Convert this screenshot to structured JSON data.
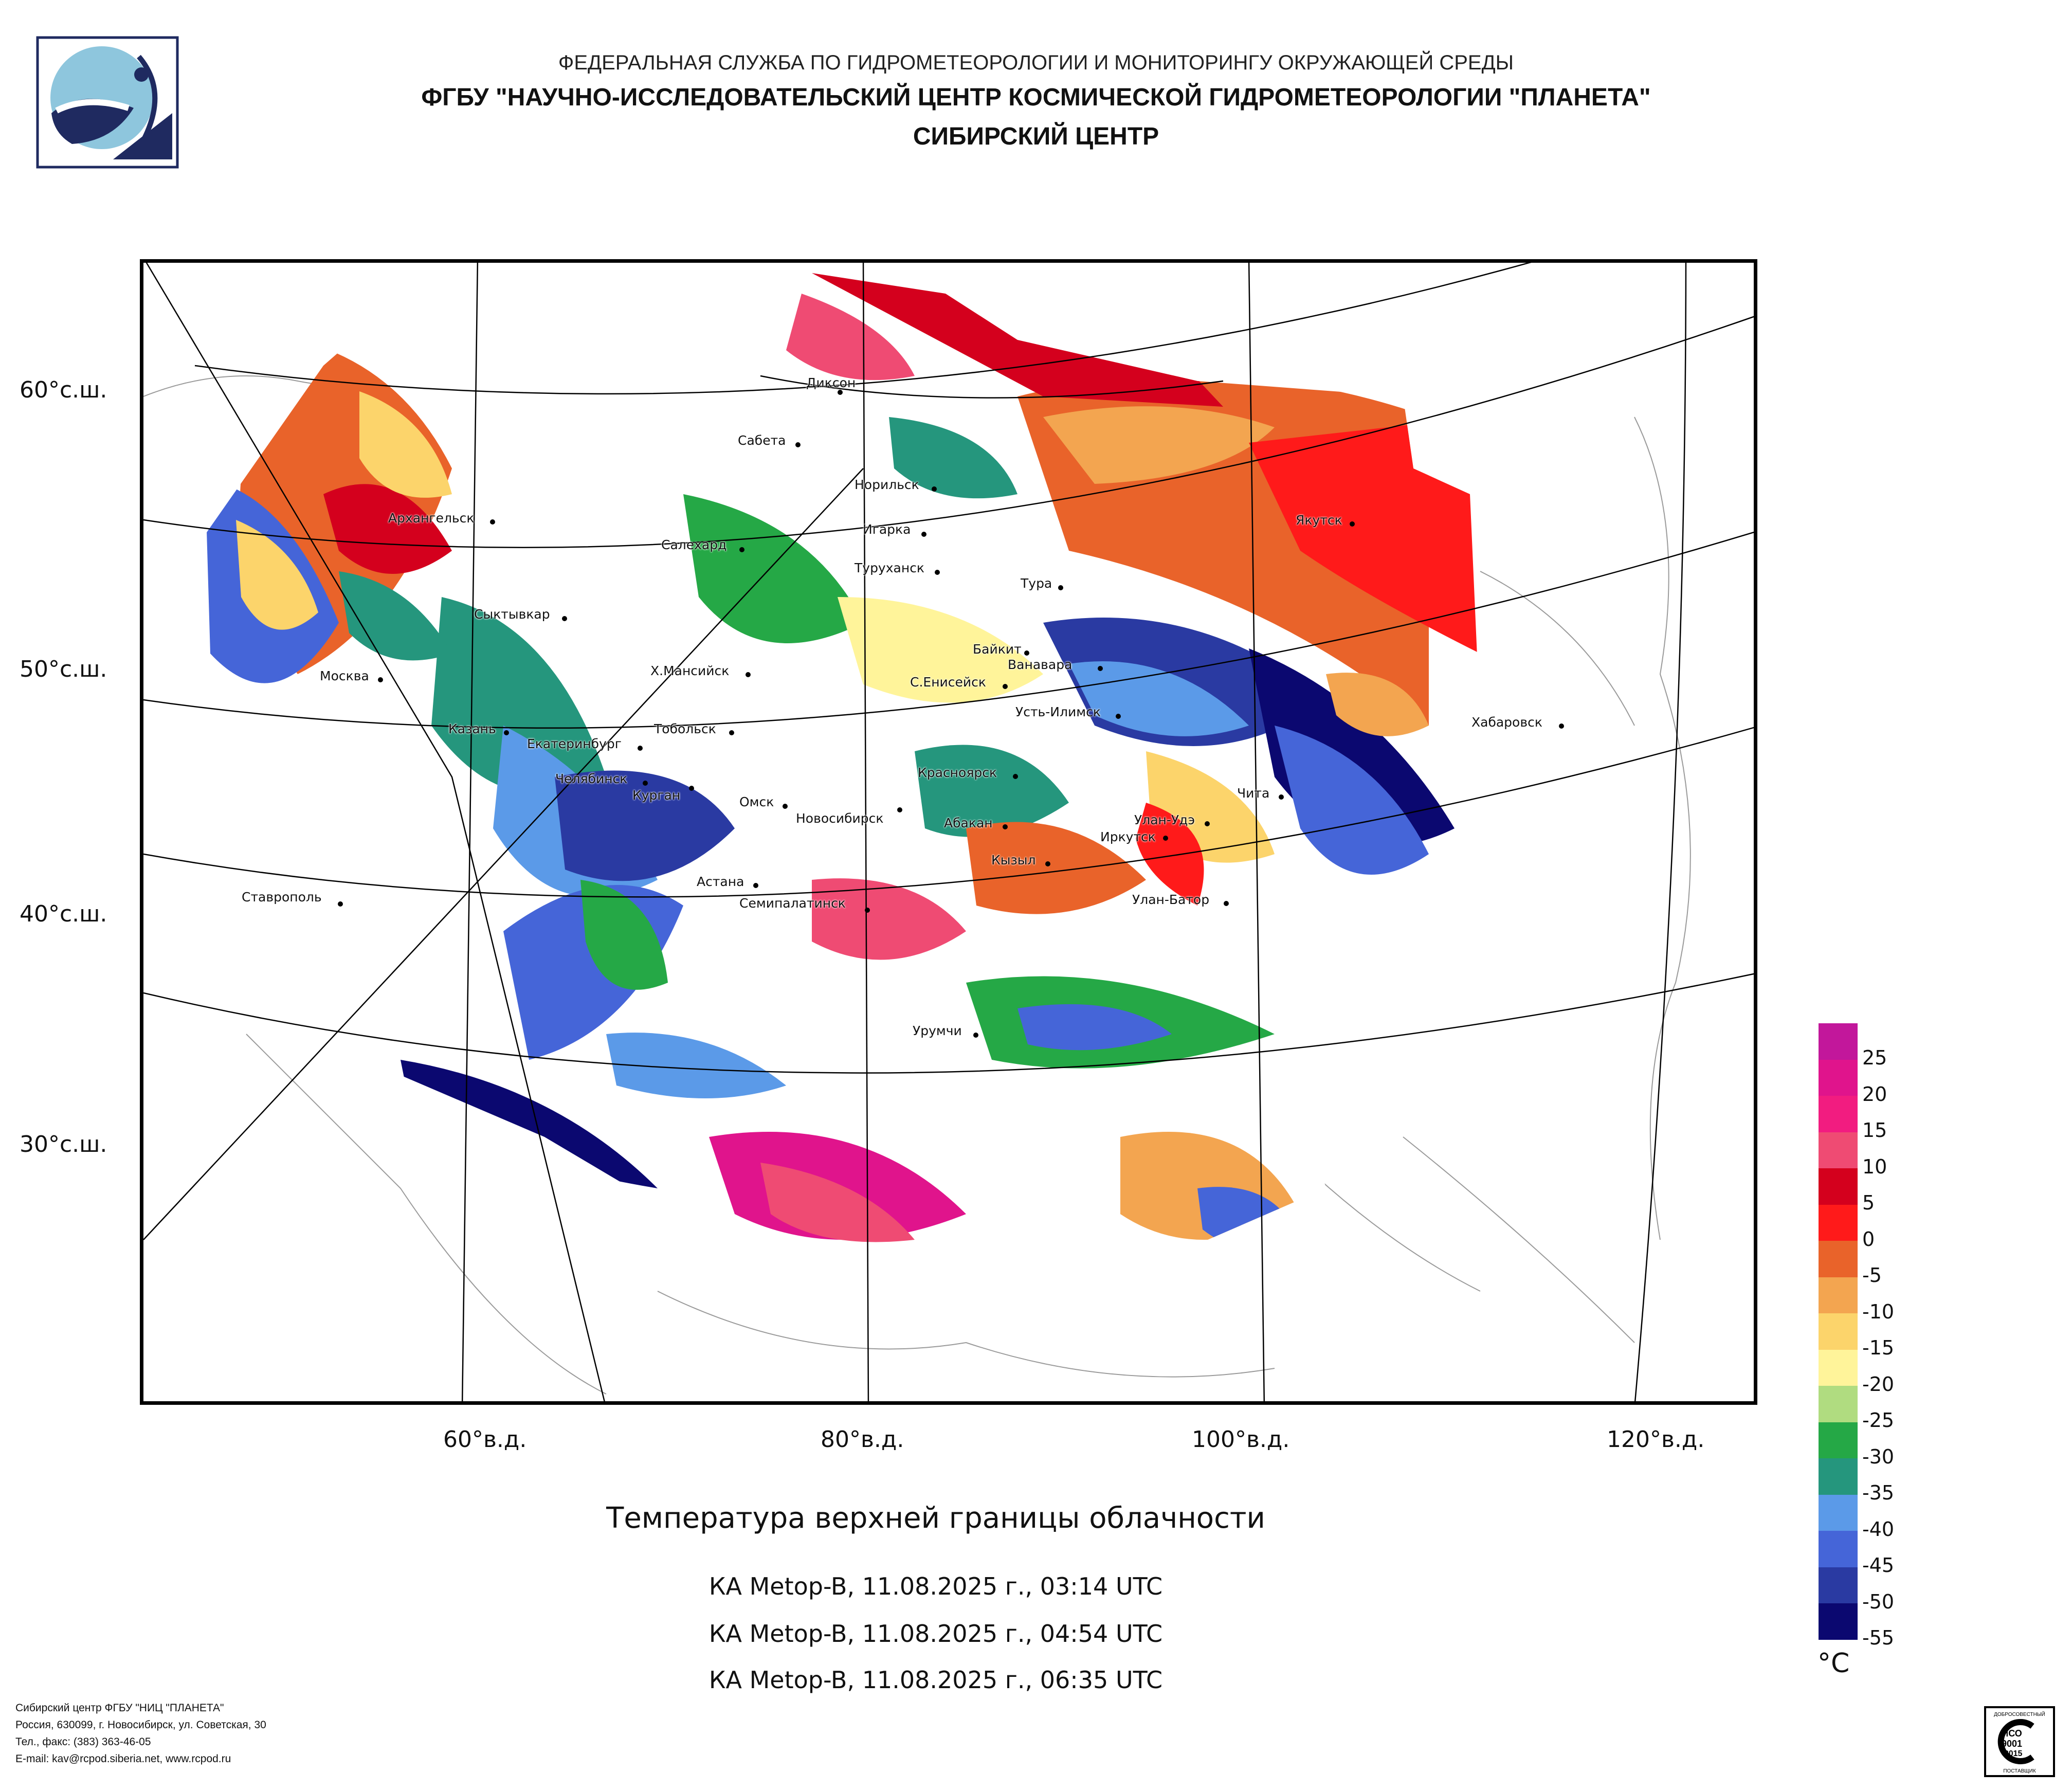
{
  "header": {
    "line1": "ФЕДЕРАЛЬНАЯ СЛУЖБА ПО ГИДРОМЕТЕОРОЛОГИИ И МОНИТОРИНГУ ОКРУЖАЮЩЕЙ СРЕДЫ",
    "line2": "ФГБУ \"НАУЧНО-ИССЛЕДОВАТЕЛЬСКИЙ ЦЕНТР КОСМИЧЕСКОЙ ГИДРОМЕТЕОРОЛОГИИ \"ПЛАНЕТА\"",
    "line3": "СИБИРСКИЙ ЦЕНТР"
  },
  "map": {
    "lat_labels": [
      "60°с.ш.",
      "50°с.ш.",
      "40°с.ш.",
      "30°с.ш."
    ],
    "lon_labels": [
      "60°в.д.",
      "80°в.д.",
      "100°в.д.",
      "120°в.д."
    ],
    "cities": [
      "Диксон",
      "Сабета",
      "Норильск",
      "Игарка",
      "Салехард",
      "Туруханск",
      "Тура",
      "Якутск",
      "Архангельск",
      "Сыктывкар",
      "Байкит",
      "Ванавара",
      "Москва",
      "Х.Мансийск",
      "С.Енисейск",
      "Усть-Илимск",
      "Хабаровск",
      "Казань",
      "Тобольск",
      "Екатеринбург",
      "Челябинск",
      "Курган",
      "Омск",
      "Новосибирск",
      "Красноярск",
      "Абакан",
      "Улан-Удэ",
      "Чита",
      "Иркутск",
      "Кызыл",
      "Астана",
      "Семипалатинск",
      "Улан-Батор",
      "Ставрополь",
      "Урумчи"
    ]
  },
  "title": "Температура верхней границы облачности",
  "passes": [
    "КА Metop-B, 11.08.2025 г., 03:14 UTC",
    "КА Metop-B, 11.08.2025 г., 04:54 UTC",
    "КА Metop-B, 11.08.2025 г., 06:35 UTC"
  ],
  "legend": {
    "unit": "°C",
    "labels": [
      "25",
      "20",
      "15",
      "10",
      "5",
      "0",
      "-5",
      "-10",
      "-15",
      "-20",
      "-25",
      "-30",
      "-35",
      "-40",
      "-45",
      "-50",
      "-55"
    ],
    "colors": [
      "#c2179b",
      "#e0148c",
      "#f21c80",
      "#ef4b73",
      "#d4001d",
      "#ff1a1a",
      "#e9632a",
      "#f3a550",
      "#fcd46b",
      "#fff49a",
      "#b0dc80",
      "#25a846",
      "#25967d",
      "#5b9ae8",
      "#4565d8",
      "#2a3aa2",
      "#0b0870"
    ]
  },
  "footer": {
    "line1": "Сибирский центр ФГБУ \"НИЦ \"ПЛАНЕТА\"",
    "line2": "Россия, 630099, г. Новосибирск, ул. Советская, 30",
    "line3": "Тел., факс: (383) 363-46-05",
    "line4": "E-mail: kav@rcpod.siberia.net, www.rcpod.ru"
  },
  "iso_badge": {
    "top": "ДОБРОСОВЕСТНЫЙ",
    "line1": "ИСО",
    "line2": "9001",
    "line3": "-2015",
    "bottom": "ПОСТАВЩИК"
  }
}
